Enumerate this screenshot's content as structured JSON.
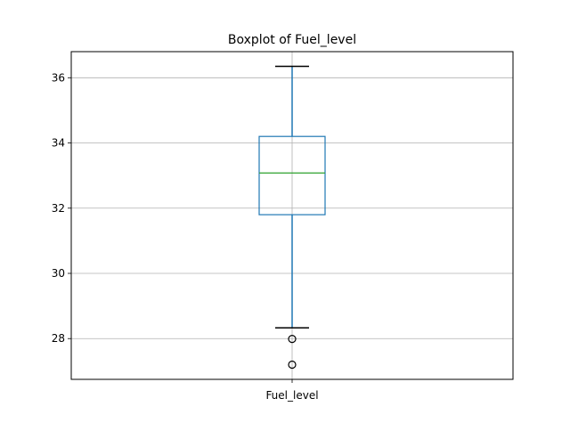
{
  "chart_data": {
    "type": "boxplot",
    "title": "Boxplot of Fuel_level",
    "xlabel": "",
    "ylabel": "",
    "categories": [
      "Fuel_level"
    ],
    "boxes": [
      {
        "category": "Fuel_level",
        "whisker_low": 28.33,
        "q1": 31.8,
        "median": 33.08,
        "q3": 34.2,
        "whisker_high": 36.35,
        "outliers": [
          27.99,
          27.2
        ]
      }
    ],
    "ylim": [
      26.75,
      36.8
    ],
    "yticks": [
      28,
      30,
      32,
      34,
      36
    ],
    "grid": true,
    "colors": {
      "box": "#1f77b4",
      "whisker": "#1f77b4",
      "median": "#2ca02c",
      "grid": "#b0b0b0",
      "outlier_edge": "#000000"
    }
  }
}
